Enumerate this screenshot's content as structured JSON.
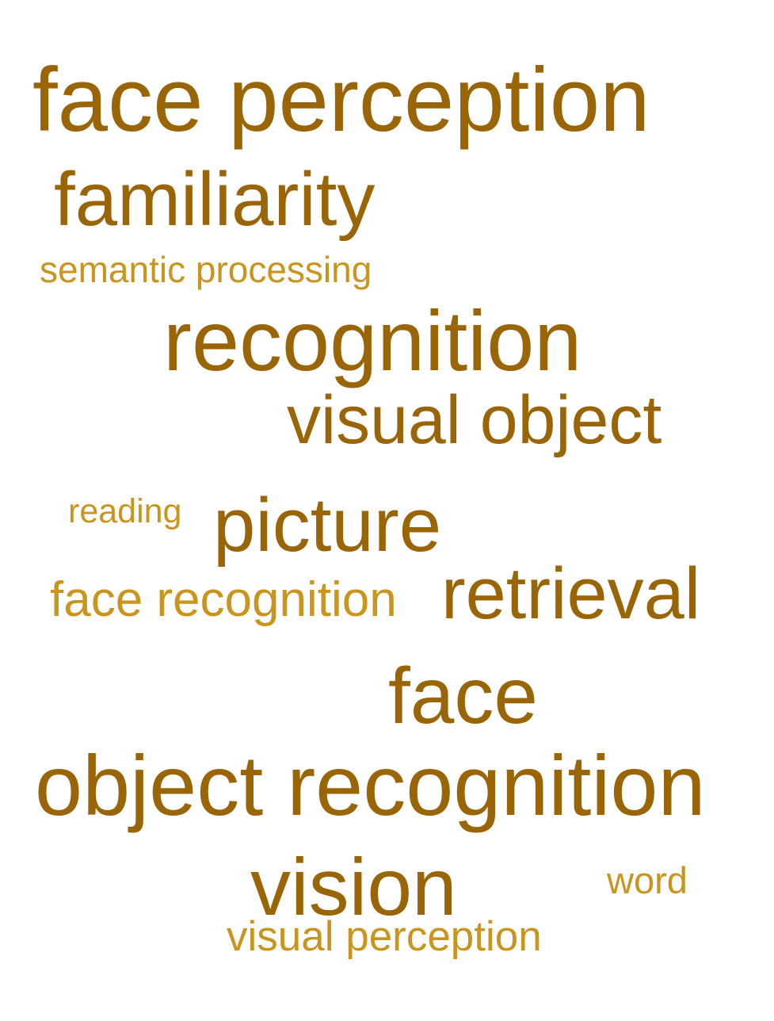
{
  "colors": {
    "dark": "#9a6506",
    "light": "#c9951e",
    "background": "#ffffff"
  },
  "words": [
    {
      "text": "face perception"
    },
    {
      "text": "familiarity"
    },
    {
      "text": "semantic processing"
    },
    {
      "text": "recognition"
    },
    {
      "text": "visual object"
    },
    {
      "text": "reading"
    },
    {
      "text": "picture"
    },
    {
      "text": "face recognition"
    },
    {
      "text": "retrieval"
    },
    {
      "text": "face"
    },
    {
      "text": "object recognition"
    },
    {
      "text": "vision"
    },
    {
      "text": "word"
    },
    {
      "text": "visual perception"
    }
  ]
}
